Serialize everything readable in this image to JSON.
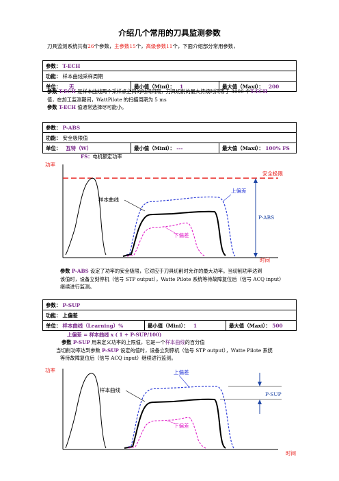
{
  "title": "介绍几个常用的刀具监测参数",
  "intro": {
    "p1": "刀具监测系统共有",
    "n_total": "26",
    "p2": "个参数，",
    "main_params": "主参数",
    "n_main": "15",
    "p3": "个，",
    "adv_params": "高级参数",
    "n_adv": "11",
    "p4": "个，下面介绍部分常用参数，"
  },
  "tech": {
    "param_label": "参数：",
    "param_value": "T-ECH",
    "func_label": "功能：",
    "func_value": "样本曲线采样周期",
    "unit_label": "单位：",
    "unit_value": "无",
    "min_label": "最小值（Mini）：",
    "min_value": "1",
    "max_label": "最大值（Maxi）：",
    "max_value": "200",
    "desc": [
      [
        "参数 ",
        "T-ECH",
        " 是样本曲线两个采样点之间的时间间隔，刀具切削的最大持续时间等于 3000 个",
        "T-ECH"
      ],
      [
        "值，在加工监测期间，WattPilote 的扫描周期为 5 ms",
        "",
        "",
        ""
      ],
      [
        "参数 ",
        "T-ECH",
        " 值通常选择尽可能小。",
        ""
      ]
    ]
  },
  "pabs": {
    "param_label": "参数：",
    "param_value": "P-ABS",
    "func_label": "功能：",
    "func_value": "安全极限值",
    "unit_label": "单位：",
    "unit_value": "瓦特（W）",
    "min_label": "最小值（Mini）：",
    "min_value": "---",
    "max_label": "最大值（Maxi）：",
    "max_value": "100% FS",
    "fs_note_key": "FS：",
    "fs_note": "电机额定功率",
    "chart": {
      "y_label": "功率",
      "x_label": "时间",
      "sample_label": "样本曲线",
      "upper_label": "上偏差",
      "lower_label": "下偏差",
      "limit_label": "安全极限",
      "param_label": "P-ABS"
    },
    "desc": [
      [
        "参数 ",
        "P-ABS",
        " 设定了功率的安全极限，它对应于刀具切削时允许的最大功率。当切削功率达到"
      ],
      [
        "该值时，设备立刻停机（信号 STP output），Watte Pilote 系统等待故障复位后（信号 ACQ input）"
      ],
      [
        "继续进行监测。"
      ]
    ]
  },
  "psup": {
    "param_label": "参数：",
    "param_value": "P-SUP",
    "func_label": "功能：",
    "func_value": "上偏差",
    "unit_label": "单位：",
    "unit_value": "样本曲线（Learning）%",
    "min_label": "最小值（Mini）：",
    "min_value": "1",
    "max_label": "最大值（Maxi）：",
    "max_value": "500",
    "formula": "上偏差 = 样本曲线 x ( 1 + P-SUP/100)",
    "desc": [
      [
        "参数 ",
        "P-SUP",
        " 用来定义功率的上限值，它是一个",
        "样本曲线",
        "的百分值"
      ],
      [
        "当切削功率达到参数 ",
        "P-SUP",
        " 设定的值时，设备立刻停机（信号 STP output），Watte Pilote 系统"
      ],
      [
        "等待故障复位后（信号 ACQ input）继续进行监测。"
      ]
    ],
    "chart": {
      "y_label": "功率",
      "x_label": "时间",
      "sample_label": "样本曲线",
      "upper_label": "上偏差",
      "lower_label": "下偏差",
      "param_label": "P-SUP"
    }
  },
  "colors": {
    "red": "#e8211d",
    "purple": "#7b2c8c",
    "blue_dash": "#2f3fd8",
    "magenta_dash": "#e020c8",
    "chart_blue": "#1f47a6"
  }
}
